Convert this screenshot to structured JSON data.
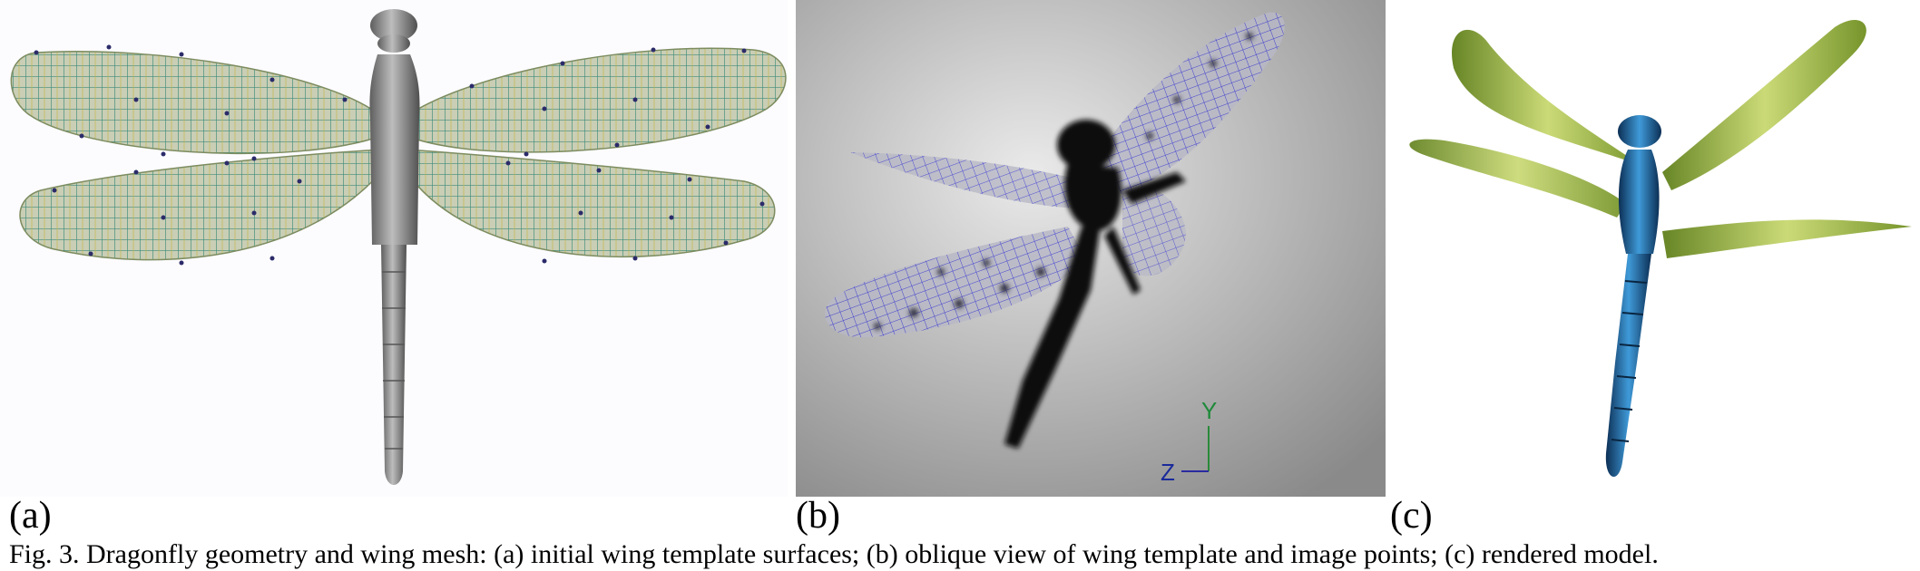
{
  "figure": {
    "panels": [
      {
        "label": "(a)"
      },
      {
        "label": "(b)"
      },
      {
        "label": "(c)"
      }
    ],
    "axes": {
      "y": "Y",
      "z": "Z"
    },
    "caption": "Fig. 3. Dragonfly geometry and wing mesh: (a) initial wing template surfaces; (b) oblique view of wing template and image points; (c) rendered model."
  },
  "colors": {
    "wing_fill_a": "#c7ccb0",
    "wing_mesh_a": "#3d8a7a",
    "body_gray": "#9a9a9a",
    "wing_mesh_b": "#2a2ad0",
    "body_blue": "#1f6fb0",
    "wing_green": "#9bbf3a",
    "axis_y": "#1f8a3a",
    "axis_z": "#1a2a9a"
  },
  "icons": {
    "panel_a": "dragonfly-mesh-model-image",
    "panel_b": "dragonfly-photo-overlay-image",
    "panel_c": "dragonfly-rendered-model-image"
  }
}
